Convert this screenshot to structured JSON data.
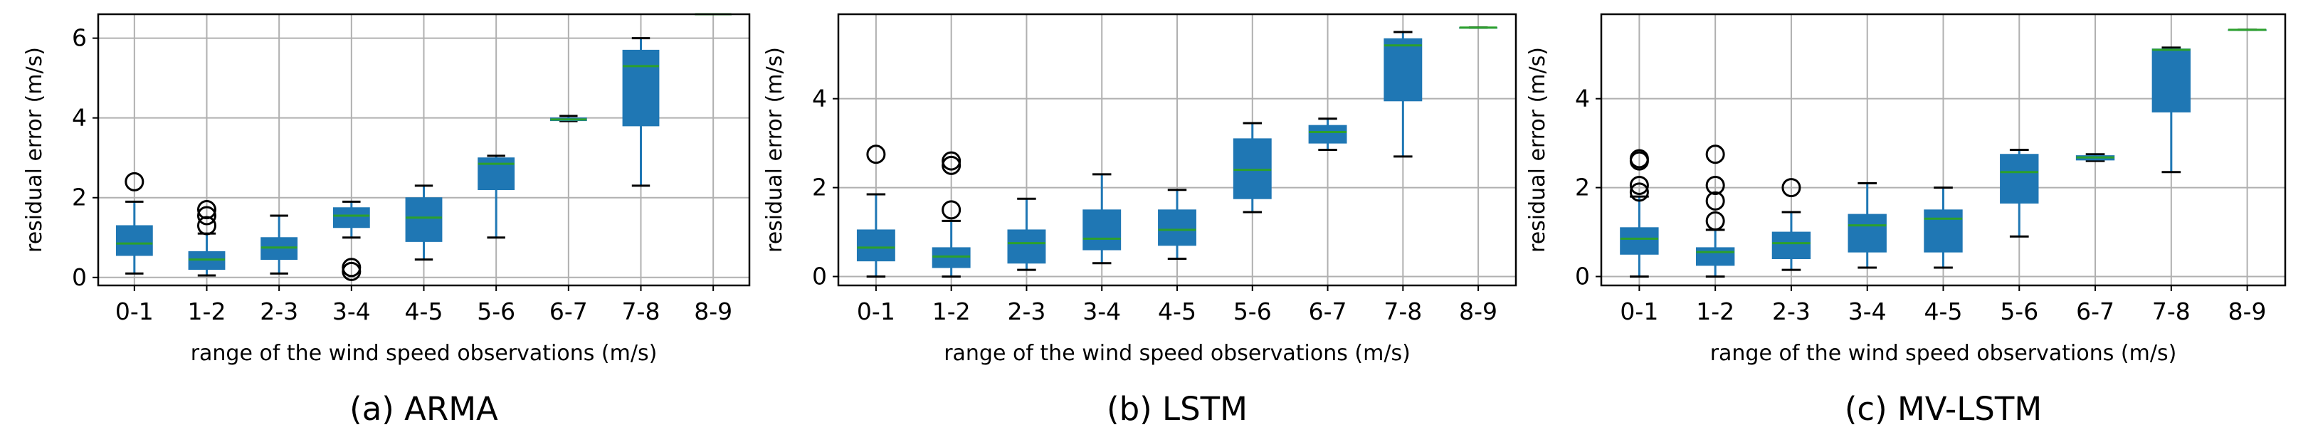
{
  "style": {
    "box_color": "#1f77b4",
    "median_color": "#2ca02c",
    "grid_color": "#b0b0b0"
  },
  "chart_data": [
    {
      "type": "boxplot",
      "title": "(a) ARMA",
      "xlabel": "range of the wind speed observations (m/s)",
      "ylabel": "residual error (m/s)",
      "categories": [
        "0-1",
        "1-2",
        "2-3",
        "3-4",
        "4-5",
        "5-6",
        "6-7",
        "7-8",
        "8-9"
      ],
      "ylim": [
        -0.2,
        6.6
      ],
      "yticks": [
        0,
        2,
        4,
        6
      ],
      "grid": true,
      "boxes": [
        {
          "whislo": 0.1,
          "q1": 0.55,
          "med": 0.85,
          "q3": 1.3,
          "whishi": 1.9,
          "fliers": [
            2.4
          ]
        },
        {
          "whislo": 0.05,
          "q1": 0.2,
          "med": 0.45,
          "q3": 0.65,
          "whishi": 1.1,
          "fliers": [
            1.3,
            1.55,
            1.7
          ]
        },
        {
          "whislo": 0.1,
          "q1": 0.45,
          "med": 0.75,
          "q3": 1.0,
          "whishi": 1.55,
          "fliers": []
        },
        {
          "whislo": 1.0,
          "q1": 1.25,
          "med": 1.55,
          "q3": 1.75,
          "whishi": 1.9,
          "fliers": [
            0.15,
            0.25
          ]
        },
        {
          "whislo": 0.45,
          "q1": 0.9,
          "med": 1.5,
          "q3": 2.0,
          "whishi": 2.3,
          "fliers": []
        },
        {
          "whislo": 1.0,
          "q1": 2.2,
          "med": 2.85,
          "q3": 3.0,
          "whishi": 3.05,
          "fliers": []
        },
        {
          "whislo": 3.92,
          "q1": 3.93,
          "med": 3.96,
          "q3": 4.0,
          "whishi": 4.05,
          "fliers": []
        },
        {
          "whislo": 2.3,
          "q1": 3.8,
          "med": 5.3,
          "q3": 5.7,
          "whishi": 6.0,
          "fliers": []
        },
        {
          "whislo": 6.6,
          "q1": 6.6,
          "med": 6.6,
          "q3": 6.6,
          "whishi": 6.6,
          "fliers": []
        }
      ]
    },
    {
      "type": "boxplot",
      "title": "(b) LSTM",
      "xlabel": "range of the wind speed observations (m/s)",
      "ylabel": "residual error (m/s)",
      "categories": [
        "0-1",
        "1-2",
        "2-3",
        "3-4",
        "4-5",
        "5-6",
        "6-7",
        "7-8",
        "8-9"
      ],
      "ylim": [
        -0.2,
        5.9
      ],
      "yticks": [
        0,
        2,
        4
      ],
      "grid": true,
      "boxes": [
        {
          "whislo": 0.0,
          "q1": 0.35,
          "med": 0.65,
          "q3": 1.05,
          "whishi": 1.85,
          "fliers": [
            2.75
          ]
        },
        {
          "whislo": 0.0,
          "q1": 0.2,
          "med": 0.45,
          "q3": 0.65,
          "whishi": 1.25,
          "fliers": [
            1.5,
            2.5,
            2.6
          ]
        },
        {
          "whislo": 0.15,
          "q1": 0.3,
          "med": 0.75,
          "q3": 1.05,
          "whishi": 1.75,
          "fliers": []
        },
        {
          "whislo": 0.3,
          "q1": 0.6,
          "med": 0.85,
          "q3": 1.5,
          "whishi": 2.3,
          "fliers": []
        },
        {
          "whislo": 0.4,
          "q1": 0.7,
          "med": 1.05,
          "q3": 1.5,
          "whishi": 1.95,
          "fliers": []
        },
        {
          "whislo": 1.45,
          "q1": 1.75,
          "med": 2.4,
          "q3": 3.1,
          "whishi": 3.45,
          "fliers": []
        },
        {
          "whislo": 2.85,
          "q1": 3.0,
          "med": 3.25,
          "q3": 3.4,
          "whishi": 3.55,
          "fliers": []
        },
        {
          "whislo": 2.7,
          "q1": 3.95,
          "med": 5.2,
          "q3": 5.35,
          "whishi": 5.5,
          "fliers": []
        },
        {
          "whislo": 5.6,
          "q1": 5.6,
          "med": 5.6,
          "q3": 5.6,
          "whishi": 5.6,
          "fliers": []
        }
      ]
    },
    {
      "type": "boxplot",
      "title": "(c) MV-LSTM",
      "xlabel": "range of the wind speed observations (m/s)",
      "ylabel": "residual error (m/s)",
      "categories": [
        "0-1",
        "1-2",
        "2-3",
        "3-4",
        "4-5",
        "5-6",
        "6-7",
        "7-8",
        "8-9"
      ],
      "ylim": [
        -0.2,
        5.9
      ],
      "yticks": [
        0,
        2,
        4
      ],
      "grid": true,
      "boxes": [
        {
          "whislo": 0.0,
          "q1": 0.5,
          "med": 0.85,
          "q3": 1.1,
          "whishi": 1.8,
          "fliers": [
            1.9,
            2.05,
            2.6,
            2.65
          ]
        },
        {
          "whislo": 0.0,
          "q1": 0.25,
          "med": 0.55,
          "q3": 0.65,
          "whishi": 1.05,
          "fliers": [
            1.25,
            1.7,
            2.05,
            2.75
          ]
        },
        {
          "whislo": 0.15,
          "q1": 0.4,
          "med": 0.75,
          "q3": 1.0,
          "whishi": 1.45,
          "fliers": [
            2.0
          ]
        },
        {
          "whislo": 0.2,
          "q1": 0.55,
          "med": 1.15,
          "q3": 1.4,
          "whishi": 2.1,
          "fliers": []
        },
        {
          "whislo": 0.2,
          "q1": 0.55,
          "med": 1.3,
          "q3": 1.5,
          "whishi": 2.0,
          "fliers": []
        },
        {
          "whislo": 0.9,
          "q1": 1.65,
          "med": 2.35,
          "q3": 2.75,
          "whishi": 2.85,
          "fliers": []
        },
        {
          "whislo": 2.6,
          "q1": 2.62,
          "med": 2.68,
          "q3": 2.72,
          "whishi": 2.75,
          "fliers": []
        },
        {
          "whislo": 2.35,
          "q1": 3.7,
          "med": 5.1,
          "q3": 5.12,
          "whishi": 5.15,
          "fliers": []
        },
        {
          "whislo": 5.55,
          "q1": 5.55,
          "med": 5.55,
          "q3": 5.55,
          "whishi": 5.55,
          "fliers": []
        }
      ]
    }
  ]
}
